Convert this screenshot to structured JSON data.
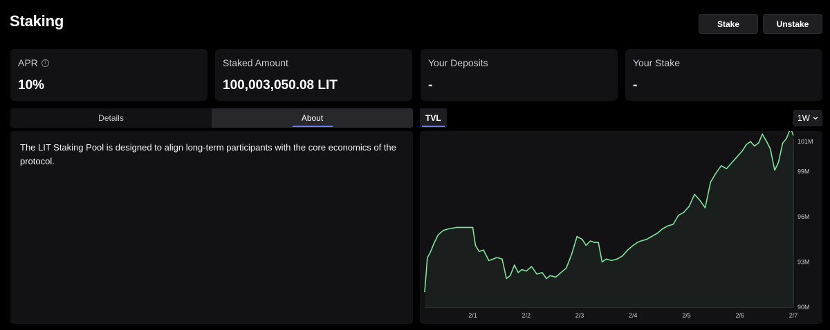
{
  "header": {
    "title": "Staking",
    "stake_label": "Stake",
    "unstake_label": "Unstake"
  },
  "stats": [
    {
      "label": "APR",
      "value": "10%",
      "has_info": true
    },
    {
      "label": "Staked Amount",
      "value": "100,003,050.08 LIT",
      "has_info": false
    },
    {
      "label": "Your Deposits",
      "value": "-",
      "has_info": false
    },
    {
      "label": "Your Stake",
      "value": "-",
      "has_info": false
    }
  ],
  "tabs": [
    {
      "label": "Details",
      "active": false
    },
    {
      "label": "About",
      "active": true
    }
  ],
  "about": {
    "text": "The LIT Staking Pool is designed to align long-term participants with the core economics of the protocol."
  },
  "chart_tabs": {
    "active": "TVL",
    "range": "1W",
    "range_icon": "chevron-down-icon"
  },
  "colors": {
    "line": "#7be59a",
    "accent": "#6a7ee6"
  },
  "chart_data": {
    "type": "area",
    "ylim": [
      90,
      101
    ],
    "yticks": [
      "90M",
      "93M",
      "96M",
      "99M",
      "101M"
    ],
    "ytick_values": [
      90,
      93,
      96,
      99,
      101
    ],
    "xticks": [
      "2/1",
      "2/2",
      "2/3",
      "2/4",
      "2/5",
      "2/6",
      "2/7"
    ],
    "xtick_values": [
      1,
      2,
      3,
      4,
      5,
      6,
      7
    ],
    "xlim": [
      0.1,
      7
    ],
    "series": [
      {
        "x": [
          0.1,
          0.15,
          0.2,
          0.27,
          0.35,
          0.45,
          0.55,
          0.7,
          0.9,
          1.0,
          1.05,
          1.12,
          1.2,
          1.3,
          1.38,
          1.45,
          1.55,
          1.63,
          1.7,
          1.78,
          1.85,
          1.92,
          2.0,
          2.1,
          2.2,
          2.3,
          2.38,
          2.45,
          2.55,
          2.65,
          2.75,
          2.85,
          2.95,
          3.05,
          3.12,
          3.2,
          3.28,
          3.35,
          3.42,
          3.5,
          3.6,
          3.7,
          3.8,
          3.9,
          4.0,
          4.08,
          4.15,
          4.25,
          4.35,
          4.45,
          4.55,
          4.65,
          4.75,
          4.85,
          4.95,
          5.05,
          5.15,
          5.25,
          5.35,
          5.45,
          5.55,
          5.65,
          5.75,
          5.85,
          5.95,
          6.05,
          6.12,
          6.2,
          6.27,
          6.35,
          6.42,
          6.5,
          6.57,
          6.65,
          6.72,
          6.8,
          6.87,
          6.95,
          7.0
        ],
        "values": [
          91.0,
          93.3,
          93.6,
          94.2,
          94.8,
          95.1,
          95.2,
          95.3,
          95.3,
          95.3,
          94.1,
          93.7,
          93.8,
          93.1,
          93.2,
          93.3,
          93.2,
          91.9,
          92.1,
          92.8,
          92.3,
          92.5,
          92.4,
          92.7,
          92.2,
          92.3,
          91.9,
          92.1,
          92.0,
          92.3,
          92.6,
          93.5,
          94.7,
          94.5,
          94.1,
          94.4,
          94.3,
          94.3,
          93.0,
          93.2,
          93.1,
          93.2,
          93.4,
          93.8,
          94.1,
          94.3,
          94.4,
          94.5,
          94.7,
          94.9,
          95.2,
          95.4,
          95.5,
          96.1,
          96.3,
          96.7,
          97.5,
          97.1,
          96.6,
          98.3,
          98.9,
          99.4,
          99.2,
          99.6,
          100.0,
          100.4,
          100.8,
          101.0,
          100.7,
          100.9,
          101.5,
          101.0,
          100.5,
          99.1,
          99.6,
          100.9,
          101.2,
          101.9,
          101.4
        ]
      }
    ]
  }
}
